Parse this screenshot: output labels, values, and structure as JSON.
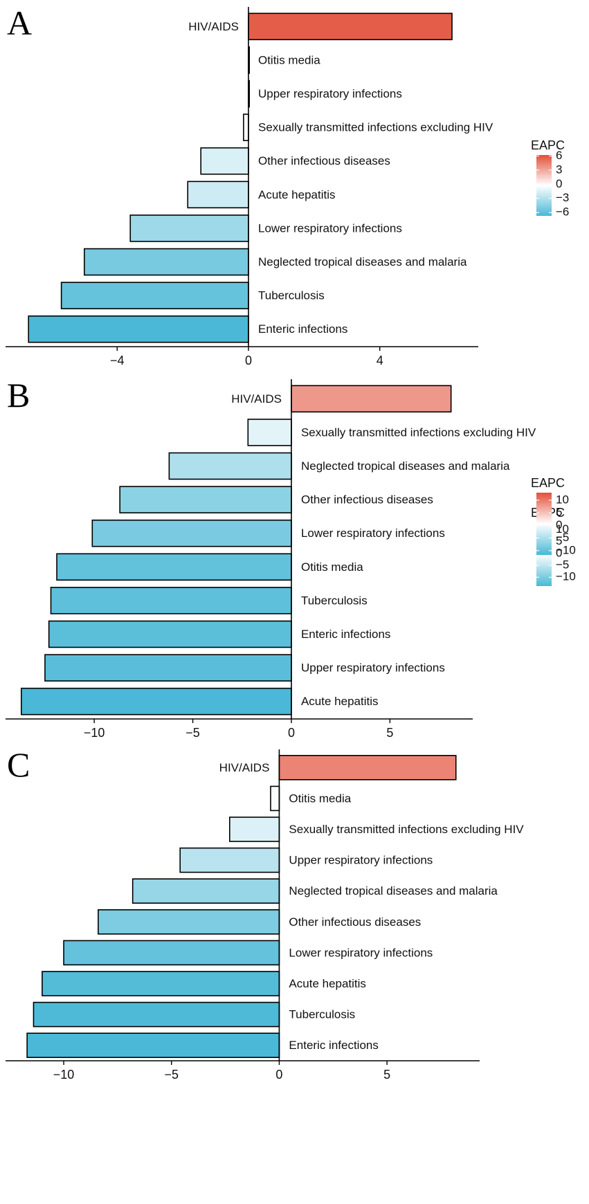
{
  "chart_data": [
    {
      "panel_label": "A",
      "type": "bar",
      "orientation": "horizontal",
      "categories": [
        "HIV/AIDS",
        "Otitis media",
        "Upper respiratory infections",
        "Sexually transmitted infections excluding HIV",
        "Other infectious diseases",
        "Acute hepatitis",
        "Lower respiratory infections",
        "Neglected tropical diseases and malaria",
        "Tuberculosis",
        "Enteric infections"
      ],
      "values": [
        6.2,
        0.02,
        0.02,
        -0.15,
        -1.45,
        -1.85,
        -3.6,
        -5.0,
        -5.7,
        -6.7
      ],
      "xlim": [
        -7.4,
        7.0
      ],
      "xticks": [
        -4,
        0,
        4
      ],
      "xtick_labels": [
        "−4",
        "0",
        "4"
      ],
      "legend": {
        "title": "EAPC",
        "ticks": [
          6,
          3,
          0,
          -3,
          -6
        ],
        "tick_labels": [
          "6",
          "3",
          "0",
          "−3",
          "−6"
        ],
        "range": [
          -6.7,
          6.2
        ]
      }
    },
    {
      "panel_label": "B",
      "type": "bar",
      "orientation": "horizontal",
      "categories": [
        "HIV/AIDS",
        "Sexually transmitted infections excluding HIV",
        "Neglected tropical diseases and malaria",
        "Other infectious diseases",
        "Lower respiratory infections",
        "Otitis media",
        "Tuberculosis",
        "Enteric infections",
        "Upper respiratory infections",
        "Acute hepatitis"
      ],
      "values": [
        8.1,
        -2.2,
        -6.2,
        -8.7,
        -10.1,
        -11.9,
        -12.2,
        -12.3,
        -12.5,
        -13.7
      ],
      "xlim": [
        -14.5,
        9.2
      ],
      "xticks": [
        -10,
        -5,
        0,
        5
      ],
      "xtick_labels": [
        "−10",
        "−5",
        "0",
        "5"
      ],
      "legend": {
        "title": "EAPC",
        "ticks": [
          10,
          5,
          0,
          -5,
          -10
        ],
        "tick_labels": [
          "10",
          "5",
          "0",
          "−5",
          "−10"
        ],
        "range": [
          -13.7,
          13.0
        ]
      }
    },
    {
      "panel_label": "C",
      "type": "bar",
      "orientation": "horizontal",
      "categories": [
        "HIV/AIDS",
        "Otitis media",
        "Sexually transmitted infections excluding HIV",
        "Upper respiratory infections",
        "Neglected tropical diseases and malaria",
        "Other infectious diseases",
        "Lower respiratory infections",
        "Acute hepatitis",
        "Tuberculosis",
        "Enteric infections"
      ],
      "values": [
        8.2,
        -0.4,
        -2.3,
        -4.6,
        -6.8,
        -8.4,
        -10.0,
        -11.0,
        -11.4,
        -11.7
      ],
      "xlim": [
        -12.7,
        9.3
      ],
      "xticks": [
        -10,
        -5,
        0,
        5
      ],
      "xtick_labels": [
        "−10",
        "−5",
        "0",
        "5"
      ],
      "legend": {
        "title": "EAPC",
        "ticks": [
          10,
          5,
          0,
          -5,
          -10
        ],
        "tick_labels": [
          "10",
          "5",
          "0",
          "−5",
          "−10"
        ],
        "range": [
          -11.7,
          13.0
        ]
      }
    }
  ],
  "colors": {
    "low": "#4ab8d6",
    "mid": "#ffffff",
    "high": "#e2503a",
    "stroke": "#000000"
  }
}
